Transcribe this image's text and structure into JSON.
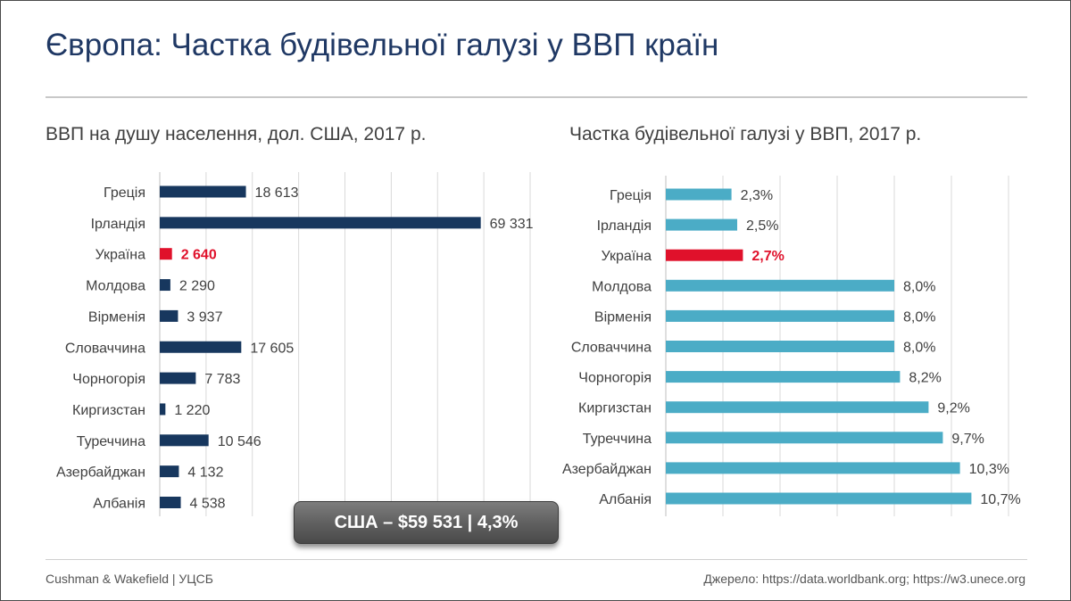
{
  "slide": {
    "title": "Європа: Частка будівельної галузі у ВВП країн",
    "callout": "США – $59 531 | 4,3%",
    "footer_left": "Cushman & Wakefield | УЦСБ",
    "footer_right": "Джерело: https://data.worldbank.org; https://w3.unece.org"
  },
  "colors": {
    "title": "#1f3864",
    "left_bar": "#17375e",
    "right_bar": "#4bacc6",
    "highlight": "#e0112b",
    "grid": "#d9d9d9"
  },
  "chart_data": [
    {
      "type": "bar",
      "orientation": "horizontal",
      "title": "ВВП на душу населення, дол. США, 2017 р.",
      "categories": [
        "Греція",
        "Ірландія",
        "Україна",
        "Молдова",
        "Вірменія",
        "Словаччина",
        "Чорногорія",
        "Киргизстан",
        "Туреччина",
        "Азербайджан",
        "Албанія"
      ],
      "values": [
        18613,
        69331,
        2640,
        2290,
        3937,
        17605,
        7783,
        1220,
        10546,
        4132,
        4538
      ],
      "value_labels": [
        "18 613",
        "69 331",
        "2 640",
        "2 290",
        "3 937",
        "17 605",
        "7 783",
        "1 220",
        "10 546",
        "4 132",
        "4 538"
      ],
      "highlight": "Україна",
      "xlim": [
        0,
        80000
      ],
      "grid": true
    },
    {
      "type": "bar",
      "orientation": "horizontal",
      "title": "Частка будівельної галузі у ВВП, 2017 р.",
      "categories": [
        "Греція",
        "Ірландія",
        "Україна",
        "Молдова",
        "Вірменія",
        "Словаччина",
        "Чорногорія",
        "Киргизстан",
        "Туреччина",
        "Азербайджан",
        "Албанія"
      ],
      "values": [
        2.3,
        2.5,
        2.7,
        8.0,
        8.0,
        8.0,
        8.2,
        9.2,
        9.7,
        10.3,
        10.7
      ],
      "value_labels": [
        "2,3%",
        "2,5%",
        "2,7%",
        "8,0%",
        "8,0%",
        "8,0%",
        "8,2%",
        "9,2%",
        "9,7%",
        "10,3%",
        "10,7%"
      ],
      "highlight": "Україна",
      "xlim": [
        0,
        12
      ],
      "grid": true
    }
  ]
}
